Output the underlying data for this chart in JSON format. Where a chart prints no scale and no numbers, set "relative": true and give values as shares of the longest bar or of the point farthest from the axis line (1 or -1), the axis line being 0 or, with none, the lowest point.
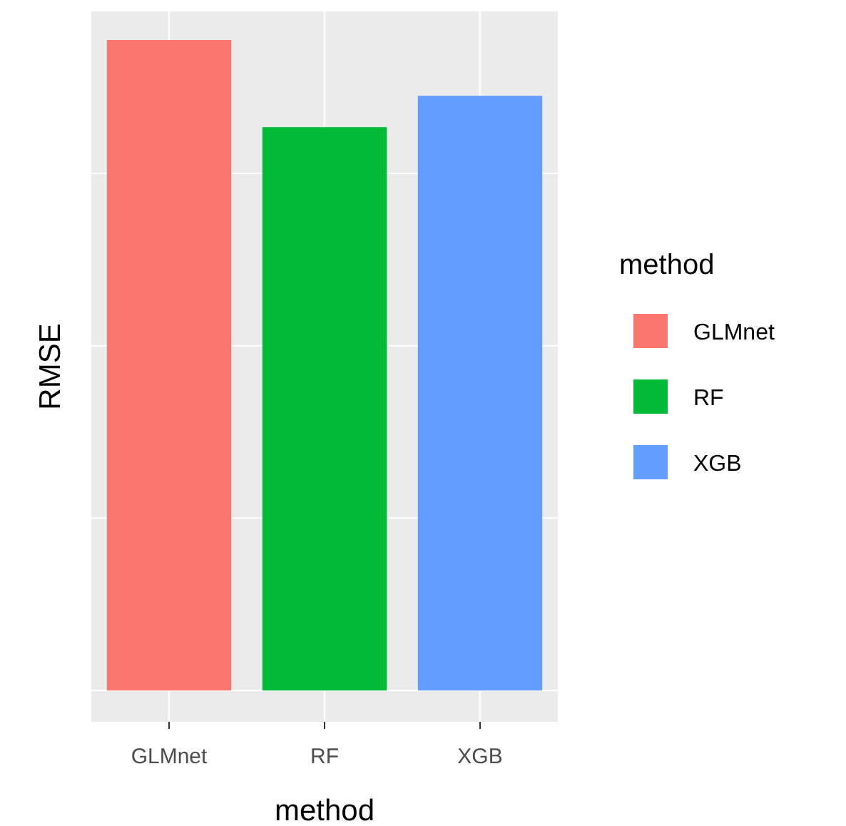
{
  "chart_data": {
    "type": "bar",
    "relative": true,
    "xlabel": "method",
    "ylabel": "RMSE",
    "legend_title": "method",
    "categories": [
      "GLMnet",
      "RF",
      "XGB"
    ],
    "series": [
      {
        "name": "GLMnet",
        "color": "#f8766d",
        "values": [
          1,
          null,
          null
        ]
      },
      {
        "name": "RF",
        "color": "#00ba38",
        "values": [
          null,
          0.866,
          null
        ]
      },
      {
        "name": "XGB",
        "color": "#619cff",
        "values": [
          null,
          null,
          0.914
        ]
      }
    ],
    "grid": true,
    "legend": "right",
    "tick_labels": "x"
  }
}
